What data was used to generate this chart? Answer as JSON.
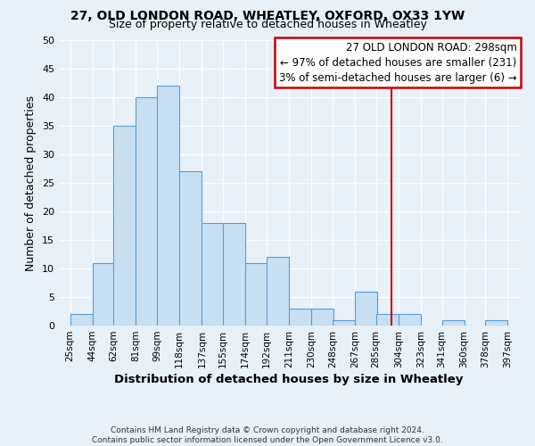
{
  "title": "27, OLD LONDON ROAD, WHEATLEY, OXFORD, OX33 1YW",
  "subtitle": "Size of property relative to detached houses in Wheatley",
  "xlabel": "Distribution of detached houses by size in Wheatley",
  "ylabel": "Number of detached properties",
  "bar_left_edges": [
    25,
    44,
    62,
    81,
    99,
    118,
    137,
    155,
    174,
    192,
    211,
    230,
    248,
    267,
    285,
    304,
    323,
    341,
    360,
    378
  ],
  "bar_heights": [
    2,
    11,
    35,
    40,
    42,
    27,
    18,
    18,
    11,
    12,
    3,
    3,
    1,
    6,
    2,
    2,
    0,
    1,
    0,
    1
  ],
  "bin_width": 19,
  "tick_labels": [
    "25sqm",
    "44sqm",
    "62sqm",
    "81sqm",
    "99sqm",
    "118sqm",
    "137sqm",
    "155sqm",
    "174sqm",
    "192sqm",
    "211sqm",
    "230sqm",
    "248sqm",
    "267sqm",
    "285sqm",
    "304sqm",
    "323sqm",
    "341sqm",
    "360sqm",
    "378sqm",
    "397sqm"
  ],
  "tick_positions": [
    25,
    44,
    62,
    81,
    99,
    118,
    137,
    155,
    174,
    192,
    211,
    230,
    248,
    267,
    285,
    304,
    323,
    341,
    360,
    378,
    397
  ],
  "bar_color": "#c8dff2",
  "bar_edge_color": "#5b9bd5",
  "property_line_x": 298,
  "property_line_color": "#cc0000",
  "ylim": [
    0,
    50
  ],
  "yticks": [
    0,
    5,
    10,
    15,
    20,
    25,
    30,
    35,
    40,
    45,
    50
  ],
  "annotation_box_text": "27 OLD LONDON ROAD: 298sqm\n← 97% of detached houses are smaller (231)\n3% of semi-detached houses are larger (6) →",
  "footer_line1": "Contains HM Land Registry data © Crown copyright and database right 2024.",
  "footer_line2": "Contains public sector information licensed under the Open Government Licence v3.0.",
  "background_color": "#e8f0f8",
  "grid_color": "#ffffff"
}
